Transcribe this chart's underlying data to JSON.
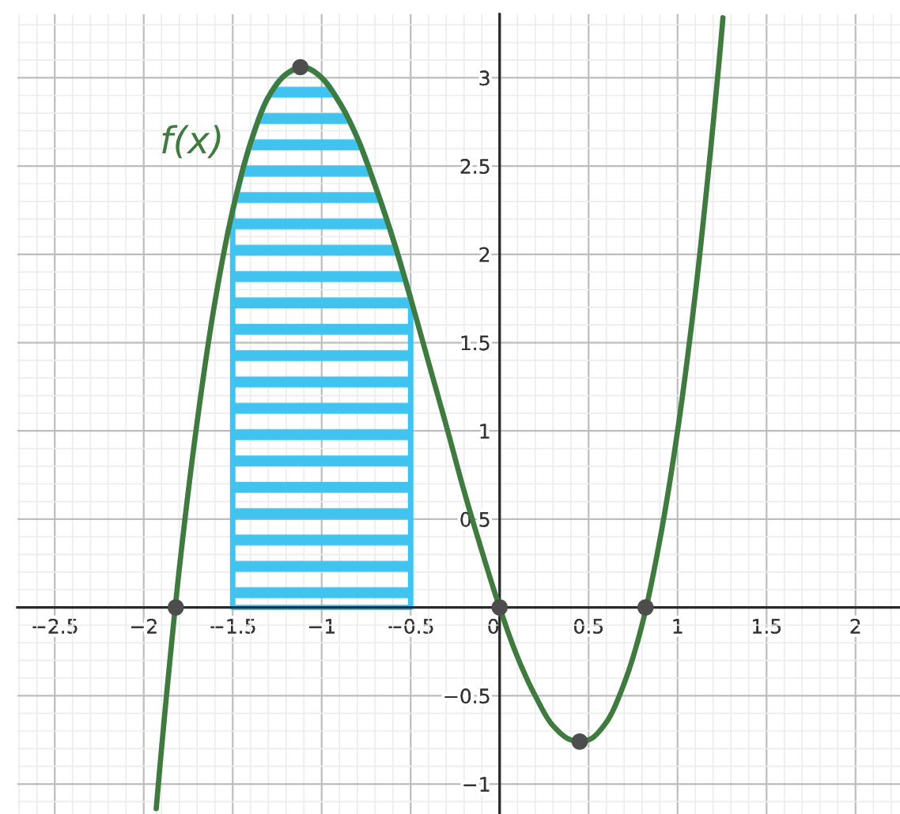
{
  "chart_data": {
    "type": "line",
    "xlim": [
      -2.71,
      2.25
    ],
    "ylim": [
      -1.17,
      3.36
    ],
    "xticks": [
      {
        "value": -2.5,
        "label": "−2.5"
      },
      {
        "value": -2,
        "label": "−2"
      },
      {
        "value": -1.5,
        "label": "−1.5"
      },
      {
        "value": -1,
        "label": "−1"
      },
      {
        "value": -0.5,
        "label": "−0.5"
      },
      0,
      0.5,
      1,
      1.5,
      2
    ],
    "yticks": [
      {
        "value": -1,
        "label": "−1"
      },
      {
        "value": -0.5,
        "label": "−0.5"
      },
      0.5,
      1,
      1.5,
      2,
      2.5,
      3
    ],
    "grid": true,
    "series": [
      {
        "type": "area",
        "color": "#41c3ef",
        "x": [
          -1.5,
          -1.4,
          -1.3,
          -1.2,
          -1.1,
          -1.0,
          -0.9,
          -0.8,
          -0.7,
          -0.6,
          -0.5
        ],
        "values": [
          2.25,
          2.63,
          2.89,
          3.02,
          3.06,
          3.0,
          2.86,
          2.66,
          2.39,
          2.09,
          1.75
        ]
      },
      {
        "name": "f(x)",
        "color": "#3f7a3f",
        "line_style": "solid",
        "x": [
          -1.93,
          -1.9,
          -1.85,
          -1.8,
          -1.7,
          -1.6,
          -1.5,
          -1.4,
          -1.3,
          -1.2,
          -1.15,
          -1.1,
          -1.05,
          -1.0,
          -0.9,
          -0.8,
          -0.7,
          -0.6,
          -0.5,
          -0.4,
          -0.3,
          -0.2,
          -0.1,
          0,
          0.1,
          0.2,
          0.3,
          0.4,
          0.45,
          0.5,
          0.6,
          0.7,
          0.8,
          0.9,
          1.0,
          1.1,
          1.15,
          1.2,
          1.25,
          1.255
        ],
        "values": [
          -1.14,
          -0.8,
          -0.27,
          0.22,
          1.05,
          1.73,
          2.25,
          2.63,
          2.89,
          3.02,
          3.05,
          3.06,
          3.04,
          3.0,
          2.86,
          2.66,
          2.39,
          2.09,
          1.75,
          1.39,
          1.03,
          0.66,
          0.32,
          0,
          -0.28,
          -0.5,
          -0.67,
          -0.75,
          -0.76,
          -0.75,
          -0.65,
          -0.43,
          -0.1,
          0.38,
          1.0,
          1.78,
          2.24,
          2.74,
          3.28,
          3.34
        ]
      },
      {
        "type": "scatter",
        "color": "#4d4d4d",
        "marker": "circle",
        "x": [
          -1.82,
          -1.12,
          0,
          0.45,
          0.82
        ],
        "values": [
          0,
          3.06,
          0,
          -0.76,
          0
        ]
      }
    ]
  }
}
